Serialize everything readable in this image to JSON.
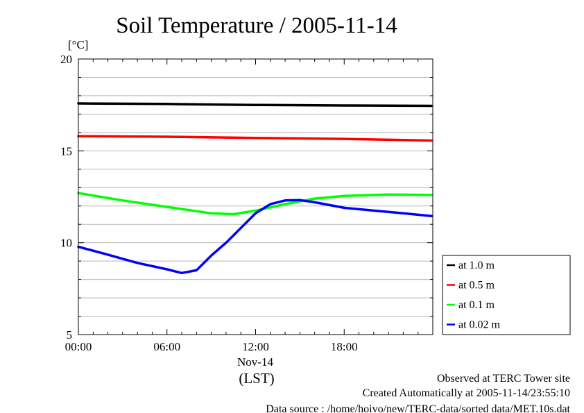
{
  "chart_data": {
    "type": "line",
    "title": "Soil Temperature / 2005-11-14",
    "ylabel": "[°C]",
    "ylim": [
      5,
      20
    ],
    "yticks": [
      5,
      10,
      15,
      20
    ],
    "xlim": [
      0,
      24
    ],
    "xticks": [
      {
        "value": 0,
        "label": "00:00"
      },
      {
        "value": 6,
        "label": "06:00"
      },
      {
        "value": 12,
        "label": "12:00"
      },
      {
        "value": 18,
        "label": "18:00"
      }
    ],
    "date_label": "Nov-14",
    "xunit": "(LST)",
    "grid": true,
    "legend_position": "right",
    "series": [
      {
        "name": "at 1.0 m",
        "color": "#000000",
        "x": [
          0,
          6,
          12,
          18,
          23.9
        ],
        "y": [
          17.58,
          17.55,
          17.5,
          17.47,
          17.45
        ]
      },
      {
        "name": "at 0.5 m",
        "color": "#ff0000",
        "x": [
          0,
          6,
          12,
          18,
          23.9
        ],
        "y": [
          15.8,
          15.77,
          15.7,
          15.65,
          15.56
        ]
      },
      {
        "name": "at 0.1 m",
        "color": "#00ff00",
        "x": [
          0,
          3,
          6,
          9,
          10.5,
          12,
          14,
          16,
          18,
          21,
          23.9
        ],
        "y": [
          12.7,
          12.3,
          11.95,
          11.6,
          11.55,
          11.75,
          12.1,
          12.4,
          12.55,
          12.62,
          12.6
        ]
      },
      {
        "name": "at 0.02 m",
        "color": "#0000ff",
        "x": [
          0,
          2,
          4,
          6,
          7,
          8,
          9,
          10,
          11,
          12,
          13,
          14,
          15,
          16,
          17,
          18,
          20,
          22,
          23.9
        ],
        "y": [
          9.78,
          9.35,
          8.9,
          8.55,
          8.35,
          8.5,
          9.3,
          10.0,
          10.8,
          11.6,
          12.1,
          12.3,
          12.32,
          12.2,
          12.05,
          11.9,
          11.75,
          11.6,
          11.45
        ]
      }
    ]
  },
  "footer": {
    "line1": "Observed at TERC Tower site",
    "line2": "Created Automatically at 2005-11-14/23:55:10",
    "line3": "Data source : /home/hoivo/new/TERC-data/sorted  data/MET.10s.dat"
  }
}
